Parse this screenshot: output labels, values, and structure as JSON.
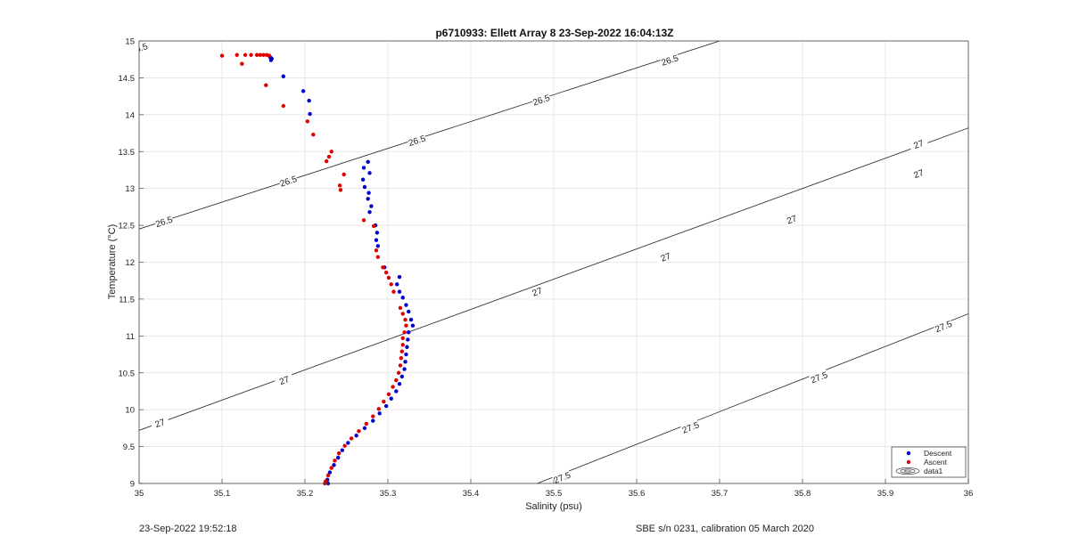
{
  "chart_data": {
    "type": "scatter",
    "title": "p6710933: Ellett Array 8 23-Sep-2022 16:04:13Z",
    "xlabel": "Salinity (psu)",
    "ylabel": "Temperature (°C)",
    "xlim": [
      35,
      36
    ],
    "ylim": [
      9,
      15
    ],
    "xticks": [
      35,
      35.1,
      35.2,
      35.3,
      35.4,
      35.5,
      35.6,
      35.7,
      35.8,
      35.9,
      36
    ],
    "xtick_labels": [
      "35",
      "35.1",
      "35.2",
      "35.3",
      "35.4",
      "35.5",
      "35.6",
      "35.7",
      "35.8",
      "35.9",
      "36"
    ],
    "yticks": [
      9,
      9.5,
      10,
      10.5,
      11,
      11.5,
      12,
      12.5,
      13,
      13.5,
      14,
      14.5,
      15
    ],
    "ytick_labels": [
      "9",
      "9.5",
      "10",
      "10.5",
      "11",
      "11.5",
      "12",
      "12.5",
      "13",
      "13.5",
      "14",
      "14.5",
      "15"
    ],
    "grid": true,
    "legend_position": "bottom-right",
    "legend": [
      "Descent",
      "Ascent",
      "data1"
    ],
    "series": [
      {
        "name": "Descent",
        "color": "#0000cc",
        "marker": "dot",
        "points": [
          [
            35.16,
            14.76
          ],
          [
            35.159,
            14.74
          ],
          [
            35.158,
            14.78
          ],
          [
            35.174,
            14.52
          ],
          [
            35.198,
            14.32
          ],
          [
            35.205,
            14.19
          ],
          [
            35.206,
            14.01
          ],
          [
            35.276,
            13.36
          ],
          [
            35.271,
            13.28
          ],
          [
            35.278,
            13.21
          ],
          [
            35.27,
            13.12
          ],
          [
            35.272,
            13.02
          ],
          [
            35.277,
            12.94
          ],
          [
            35.276,
            12.86
          ],
          [
            35.28,
            12.76
          ],
          [
            35.278,
            12.68
          ],
          [
            35.285,
            12.5
          ],
          [
            35.287,
            12.4
          ],
          [
            35.286,
            12.3
          ],
          [
            35.288,
            12.22
          ],
          [
            35.296,
            11.93
          ],
          [
            35.314,
            11.8
          ],
          [
            35.311,
            11.7
          ],
          [
            35.314,
            11.6
          ],
          [
            35.318,
            11.52
          ],
          [
            35.322,
            11.42
          ],
          [
            35.325,
            11.33
          ],
          [
            35.328,
            11.22
          ],
          [
            35.33,
            11.14
          ],
          [
            35.325,
            11.05
          ],
          [
            35.324,
            10.95
          ],
          [
            35.323,
            10.85
          ],
          [
            35.322,
            10.75
          ],
          [
            35.321,
            10.65
          ],
          [
            35.32,
            10.55
          ],
          [
            35.317,
            10.45
          ],
          [
            35.314,
            10.35
          ],
          [
            35.31,
            10.25
          ],
          [
            35.304,
            10.15
          ],
          [
            35.298,
            10.05
          ],
          [
            35.29,
            9.95
          ],
          [
            35.282,
            9.85
          ],
          [
            35.272,
            9.75
          ],
          [
            35.262,
            9.65
          ],
          [
            35.252,
            9.55
          ],
          [
            35.245,
            9.45
          ],
          [
            35.24,
            9.35
          ],
          [
            35.235,
            9.25
          ],
          [
            35.23,
            9.15
          ],
          [
            35.227,
            9.05
          ],
          [
            35.228,
            9.0
          ]
        ]
      },
      {
        "name": "Ascent",
        "color": "#dd0000",
        "marker": "dot",
        "points": [
          [
            35.1,
            14.8
          ],
          [
            35.118,
            14.81
          ],
          [
            35.128,
            14.81
          ],
          [
            35.135,
            14.81
          ],
          [
            35.142,
            14.81
          ],
          [
            35.146,
            14.81
          ],
          [
            35.15,
            14.81
          ],
          [
            35.154,
            14.81
          ],
          [
            35.157,
            14.8
          ],
          [
            35.124,
            14.69
          ],
          [
            35.153,
            14.4
          ],
          [
            35.174,
            14.12
          ],
          [
            35.203,
            13.91
          ],
          [
            35.21,
            13.73
          ],
          [
            35.232,
            13.5
          ],
          [
            35.229,
            13.43
          ],
          [
            35.226,
            13.37
          ],
          [
            35.247,
            13.19
          ],
          [
            35.242,
            13.04
          ],
          [
            35.243,
            12.98
          ],
          [
            35.271,
            12.57
          ],
          [
            35.283,
            12.49
          ],
          [
            35.286,
            12.16
          ],
          [
            35.288,
            12.07
          ],
          [
            35.294,
            11.93
          ],
          [
            35.298,
            11.86
          ],
          [
            35.301,
            11.79
          ],
          [
            35.304,
            11.7
          ],
          [
            35.307,
            11.6
          ],
          [
            35.315,
            11.38
          ],
          [
            35.318,
            11.3
          ],
          [
            35.321,
            11.22
          ],
          [
            35.322,
            11.14
          ],
          [
            35.32,
            11.05
          ],
          [
            35.318,
            10.97
          ],
          [
            35.318,
            10.88
          ],
          [
            35.317,
            10.79
          ],
          [
            35.316,
            10.7
          ],
          [
            35.315,
            10.6
          ],
          [
            35.313,
            10.5
          ],
          [
            35.31,
            10.4
          ],
          [
            35.306,
            10.31
          ],
          [
            35.301,
            10.21
          ],
          [
            35.295,
            10.11
          ],
          [
            35.289,
            10.01
          ],
          [
            35.282,
            9.91
          ],
          [
            35.274,
            9.81
          ],
          [
            35.265,
            9.71
          ],
          [
            35.256,
            9.61
          ],
          [
            35.248,
            9.51
          ],
          [
            35.241,
            9.41
          ],
          [
            35.236,
            9.31
          ],
          [
            35.232,
            9.21
          ],
          [
            35.228,
            9.11
          ],
          [
            35.225,
            9.03
          ],
          [
            35.224,
            9.0
          ]
        ]
      },
      {
        "name": "data1",
        "type": "contour",
        "color": "#222222",
        "lines": [
          {
            "label": "26.5",
            "points": [
              [
                35.0,
                12.45
              ],
              [
                35.7,
                15.0
              ]
            ],
            "label_positions": [
              [
                35.03,
                12.55
              ],
              [
                35.18,
                13.1
              ],
              [
                35.335,
                13.65
              ],
              [
                35.485,
                14.2
              ],
              [
                35.64,
                14.74
              ],
              [
                35.0,
                14.9
              ]
            ]
          },
          {
            "label": "27",
            "points": [
              [
                35.0,
                9.72
              ],
              [
                36.0,
                13.82
              ]
            ],
            "label_positions": [
              [
                35.025,
                9.82
              ],
              [
                35.175,
                10.4
              ],
              [
                35.48,
                11.6
              ],
              [
                35.635,
                12.07
              ],
              [
                35.787,
                12.58
              ],
              [
                35.94,
                13.2
              ],
              [
                35.94,
                13.6
              ]
            ]
          },
          {
            "label": "27.5",
            "points": [
              [
                35.48,
                9.0
              ],
              [
                36.0,
                11.3
              ]
            ],
            "label_positions": [
              [
                35.51,
                9.08
              ],
              [
                35.665,
                9.76
              ],
              [
                35.82,
                10.44
              ],
              [
                35.97,
                11.13
              ]
            ]
          }
        ]
      }
    ]
  },
  "footer": {
    "left": "23-Sep-2022 19:52:18",
    "right": "SBE s/n 0231, calibration 05 March 2020"
  }
}
